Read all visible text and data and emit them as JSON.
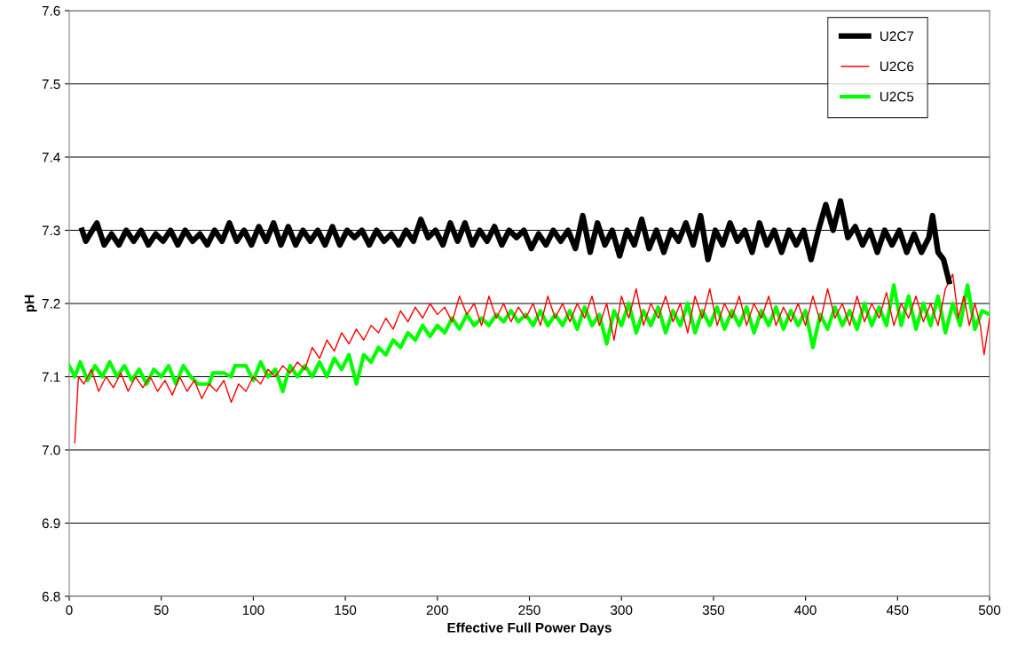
{
  "chart_data": {
    "type": "line",
    "xlabel": "Effective Full Power Days",
    "ylabel": "pH",
    "xlim": [
      0,
      500
    ],
    "xticks": [
      0,
      50,
      100,
      150,
      200,
      250,
      300,
      350,
      400,
      450,
      500
    ],
    "ylim": [
      6.8,
      7.6
    ],
    "yticks": [
      6.8,
      6.9,
      {
        "value": 7,
        "label": "7.0"
      },
      7.1,
      7.2,
      7.3,
      7.4,
      7.5,
      7.6
    ],
    "grid": "y",
    "legend": "top right",
    "marker": "none",
    "line_style": "solid",
    "series": [
      {
        "name": "U2C7",
        "color": "#000000",
        "x": [
          7,
          9,
          15,
          19,
          23,
          27,
          31,
          35,
          39,
          43,
          47,
          51,
          55,
          59,
          63,
          67,
          71,
          75,
          79,
          83,
          87,
          91,
          95,
          99,
          103,
          107,
          111,
          115,
          119,
          123,
          127,
          131,
          135,
          139,
          143,
          147,
          151,
          155,
          159,
          163,
          167,
          171,
          175,
          179,
          183,
          187,
          191,
          195,
          199,
          203,
          207,
          211,
          215,
          219,
          223,
          227,
          231,
          235,
          239,
          243,
          247,
          251,
          255,
          259,
          263,
          267,
          271,
          275,
          279,
          283,
          287,
          291,
          295,
          299,
          303,
          307,
          311,
          315,
          319,
          323,
          327,
          331,
          335,
          339,
          343,
          347,
          351,
          355,
          359,
          363,
          367,
          371,
          375,
          379,
          383,
          387,
          391,
          395,
          399,
          403,
          407,
          411,
          415,
          419,
          423,
          427,
          431,
          435,
          439,
          443,
          447,
          451,
          455,
          459,
          463,
          467,
          469,
          472,
          475,
          478
        ],
        "values": [
          7.3,
          7.285,
          7.31,
          7.28,
          7.295,
          7.28,
          7.3,
          7.285,
          7.3,
          7.28,
          7.295,
          7.285,
          7.3,
          7.28,
          7.3,
          7.285,
          7.295,
          7.28,
          7.3,
          7.285,
          7.31,
          7.285,
          7.3,
          7.28,
          7.305,
          7.285,
          7.31,
          7.28,
          7.305,
          7.28,
          7.3,
          7.285,
          7.3,
          7.28,
          7.305,
          7.28,
          7.3,
          7.29,
          7.3,
          7.28,
          7.3,
          7.285,
          7.295,
          7.28,
          7.3,
          7.285,
          7.315,
          7.29,
          7.3,
          7.28,
          7.31,
          7.285,
          7.31,
          7.28,
          7.3,
          7.285,
          7.305,
          7.28,
          7.3,
          7.29,
          7.3,
          7.275,
          7.295,
          7.28,
          7.3,
          7.285,
          7.3,
          7.275,
          7.32,
          7.27,
          7.31,
          7.28,
          7.3,
          7.265,
          7.3,
          7.28,
          7.315,
          7.275,
          7.3,
          7.27,
          7.3,
          7.285,
          7.31,
          7.28,
          7.32,
          7.26,
          7.3,
          7.28,
          7.31,
          7.285,
          7.3,
          7.27,
          7.31,
          7.28,
          7.3,
          7.27,
          7.3,
          7.28,
          7.3,
          7.26,
          7.3,
          7.335,
          7.3,
          7.34,
          7.29,
          7.305,
          7.28,
          7.3,
          7.27,
          7.3,
          7.28,
          7.3,
          7.27,
          7.295,
          7.27,
          7.29,
          7.32,
          7.27,
          7.26,
          7.23
        ]
      },
      {
        "name": "U2C6",
        "color": "#ff0000",
        "x": [
          3,
          5,
          8,
          12,
          16,
          20,
          24,
          28,
          32,
          36,
          40,
          44,
          48,
          52,
          56,
          60,
          64,
          68,
          72,
          76,
          80,
          84,
          88,
          92,
          96,
          100,
          104,
          108,
          112,
          116,
          120,
          124,
          128,
          132,
          136,
          140,
          144,
          148,
          152,
          156,
          160,
          164,
          168,
          172,
          176,
          180,
          184,
          188,
          192,
          196,
          200,
          204,
          208,
          212,
          216,
          220,
          224,
          228,
          232,
          236,
          240,
          244,
          248,
          252,
          256,
          260,
          264,
          268,
          272,
          276,
          280,
          284,
          288,
          292,
          296,
          300,
          304,
          308,
          312,
          316,
          320,
          324,
          328,
          332,
          336,
          340,
          344,
          348,
          352,
          356,
          360,
          364,
          368,
          372,
          376,
          380,
          384,
          388,
          392,
          396,
          400,
          404,
          408,
          412,
          416,
          420,
          424,
          428,
          432,
          436,
          440,
          444,
          448,
          452,
          456,
          460,
          464,
          468,
          472,
          476,
          480,
          483,
          486,
          489,
          492,
          495,
          497,
          500
        ],
        "values": [
          7.01,
          7.1,
          7.09,
          7.11,
          7.08,
          7.1,
          7.085,
          7.105,
          7.08,
          7.1,
          7.085,
          7.1,
          7.08,
          7.095,
          7.075,
          7.1,
          7.08,
          7.095,
          7.07,
          7.09,
          7.08,
          7.095,
          7.065,
          7.09,
          7.08,
          7.1,
          7.09,
          7.11,
          7.1,
          7.115,
          7.105,
          7.12,
          7.11,
          7.14,
          7.125,
          7.15,
          7.135,
          7.16,
          7.145,
          7.165,
          7.15,
          7.17,
          7.16,
          7.18,
          7.165,
          7.19,
          7.175,
          7.195,
          7.18,
          7.2,
          7.185,
          7.195,
          7.175,
          7.21,
          7.185,
          7.2,
          7.17,
          7.21,
          7.18,
          7.2,
          7.175,
          7.195,
          7.18,
          7.2,
          7.17,
          7.21,
          7.18,
          7.2,
          7.175,
          7.2,
          7.18,
          7.21,
          7.17,
          7.2,
          7.15,
          7.21,
          7.18,
          7.22,
          7.17,
          7.2,
          7.18,
          7.21,
          7.175,
          7.2,
          7.16,
          7.21,
          7.18,
          7.22,
          7.17,
          7.2,
          7.18,
          7.21,
          7.17,
          7.2,
          7.18,
          7.21,
          7.17,
          7.195,
          7.175,
          7.2,
          7.17,
          7.21,
          7.175,
          7.22,
          7.18,
          7.2,
          7.17,
          7.21,
          7.175,
          7.2,
          7.18,
          7.215,
          7.17,
          7.2,
          7.18,
          7.21,
          7.175,
          7.2,
          7.17,
          7.22,
          7.24,
          7.18,
          7.21,
          7.17,
          7.2,
          7.17,
          7.13,
          7.18
        ]
      },
      {
        "name": "U2C5",
        "color": "#00ff00",
        "x": [
          0,
          3,
          6,
          10,
          14,
          18,
          22,
          26,
          30,
          34,
          38,
          42,
          46,
          50,
          54,
          58,
          62,
          66,
          70,
          76,
          78,
          84,
          88,
          90,
          96,
          100,
          104,
          108,
          112,
          116,
          120,
          124,
          128,
          132,
          136,
          140,
          144,
          148,
          152,
          156,
          160,
          164,
          168,
          172,
          176,
          180,
          184,
          188,
          192,
          196,
          200,
          204,
          208,
          212,
          216,
          220,
          224,
          228,
          232,
          236,
          240,
          244,
          248,
          252,
          256,
          260,
          264,
          268,
          272,
          276,
          280,
          284,
          288,
          292,
          296,
          300,
          304,
          308,
          312,
          316,
          320,
          324,
          328,
          332,
          336,
          340,
          344,
          348,
          352,
          356,
          360,
          364,
          368,
          372,
          376,
          380,
          384,
          388,
          392,
          396,
          400,
          404,
          408,
          412,
          416,
          420,
          424,
          428,
          432,
          436,
          440,
          444,
          448,
          452,
          456,
          460,
          464,
          468,
          472,
          476,
          480,
          484,
          488,
          492,
          496,
          500
        ],
        "values": [
          7.115,
          7.1,
          7.12,
          7.095,
          7.115,
          7.1,
          7.12,
          7.1,
          7.115,
          7.095,
          7.11,
          7.09,
          7.11,
          7.1,
          7.115,
          7.09,
          7.115,
          7.1,
          7.09,
          7.09,
          7.105,
          7.105,
          7.1,
          7.115,
          7.115,
          7.095,
          7.12,
          7.1,
          7.11,
          7.08,
          7.115,
          7.1,
          7.115,
          7.1,
          7.12,
          7.1,
          7.125,
          7.11,
          7.13,
          7.09,
          7.13,
          7.12,
          7.14,
          7.13,
          7.15,
          7.14,
          7.16,
          7.15,
          7.17,
          7.155,
          7.17,
          7.16,
          7.18,
          7.165,
          7.185,
          7.17,
          7.18,
          7.17,
          7.185,
          7.175,
          7.19,
          7.175,
          7.185,
          7.17,
          7.19,
          7.17,
          7.185,
          7.17,
          7.19,
          7.165,
          7.195,
          7.17,
          7.185,
          7.145,
          7.19,
          7.17,
          7.2,
          7.16,
          7.19,
          7.17,
          7.195,
          7.16,
          7.19,
          7.17,
          7.2,
          7.16,
          7.19,
          7.17,
          7.195,
          7.165,
          7.19,
          7.17,
          7.195,
          7.16,
          7.19,
          7.17,
          7.195,
          7.165,
          7.19,
          7.17,
          7.19,
          7.14,
          7.185,
          7.165,
          7.195,
          7.17,
          7.19,
          7.165,
          7.2,
          7.17,
          7.195,
          7.17,
          7.225,
          7.17,
          7.21,
          7.165,
          7.2,
          7.17,
          7.21,
          7.16,
          7.2,
          7.17,
          7.225,
          7.165,
          7.19,
          7.185
        ]
      }
    ]
  }
}
